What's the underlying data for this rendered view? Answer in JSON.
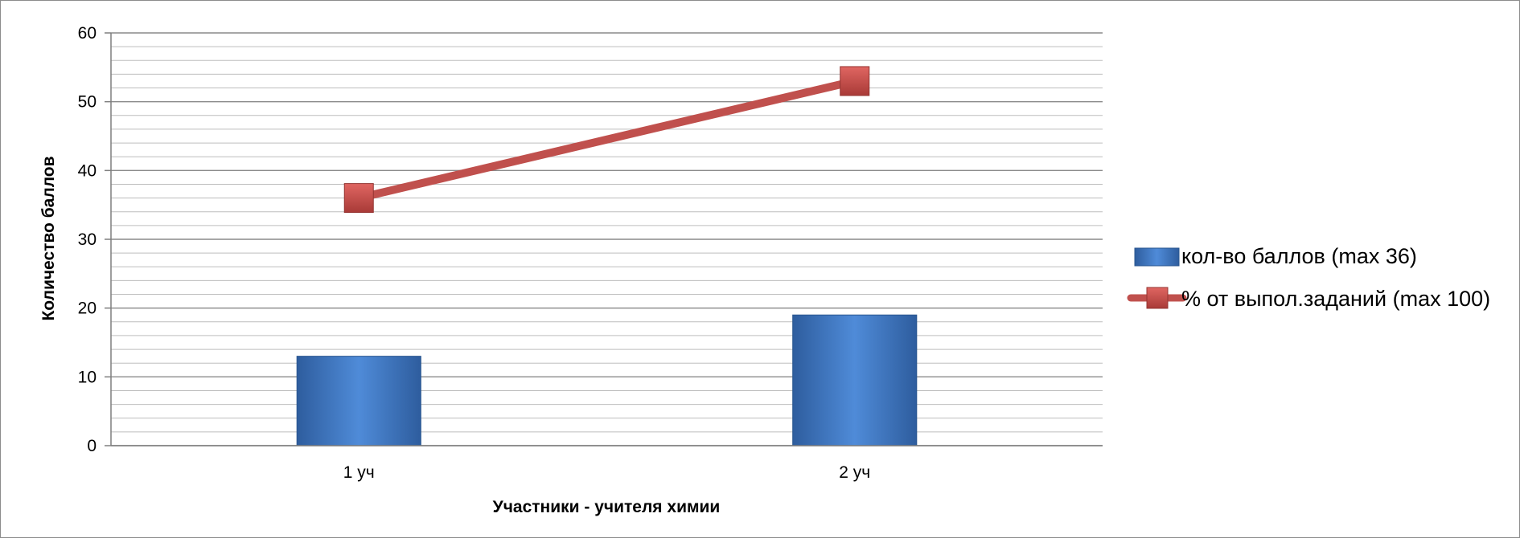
{
  "chart_data": {
    "type": "bar",
    "categories": [
      "1 уч",
      "2 уч"
    ],
    "series": [
      {
        "name": "кол-во баллов (max 36)",
        "kind": "bar",
        "values": [
          13,
          19
        ],
        "color": "#3f76c5"
      },
      {
        "name": "% от выпол.заданий (max 100)",
        "kind": "line",
        "marker": "square",
        "values": [
          36,
          53
        ],
        "color": "#c0504d"
      }
    ],
    "xlabel": "Участники - учителя химии",
    "ylabel": "Количество  баллов",
    "ylim": [
      0,
      60
    ],
    "yticks": [
      0,
      10,
      20,
      30,
      40,
      50,
      60
    ],
    "minor_grid_step": 2,
    "grid": true,
    "legend_position": "right"
  }
}
